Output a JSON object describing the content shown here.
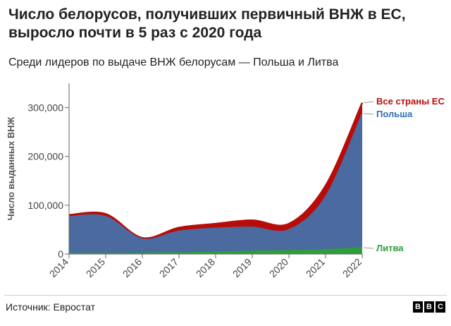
{
  "header": {
    "title": "Число белорусов, получивших первичный ВНЖ в ЕС, выросло почти в 5 раз с 2020 года",
    "subtitle": "Среди лидеров по выдаче ВНЖ белорусам — Польша и Литва"
  },
  "footer": {
    "source": "Источник: Евростат",
    "logo_letters": [
      "B",
      "B",
      "C"
    ]
  },
  "colors": {
    "eu_total": "#b80c09",
    "poland": "#4a6aa0",
    "lithuania": "#2e9e3a"
  },
  "chart_data": {
    "type": "area",
    "title": "Число белорусов, получивших первичный ВНЖ в ЕС, выросло почти в 5 раз с 2020 года",
    "ylabel": "Число выданных ВНЖ",
    "xlabel": "",
    "x": [
      2014,
      2015,
      2016,
      2017,
      2018,
      2019,
      2020,
      2021,
      2022
    ],
    "x_tick_labels": [
      "2014",
      "2015",
      "2016",
      "2017",
      "2018",
      "2019",
      "2020",
      "2021",
      "2022"
    ],
    "y_ticks": [
      0,
      100000,
      200000,
      300000
    ],
    "y_tick_labels": [
      "0",
      "100,000",
      "200,000",
      "300,000"
    ],
    "ylim": [
      0,
      350000
    ],
    "grid": false,
    "series": [
      {
        "name": "Все страны ЕС",
        "values": [
          80000,
          82000,
          33000,
          54000,
          62000,
          69000,
          62000,
          140000,
          310000
        ]
      },
      {
        "name": "Польша",
        "values": [
          77000,
          77000,
          31000,
          47000,
          53000,
          55000,
          50000,
          118000,
          288000
        ]
      },
      {
        "name": "Литва",
        "values": [
          1500,
          1500,
          2000,
          2500,
          4000,
          6000,
          7000,
          9000,
          13000
        ]
      }
    ]
  }
}
